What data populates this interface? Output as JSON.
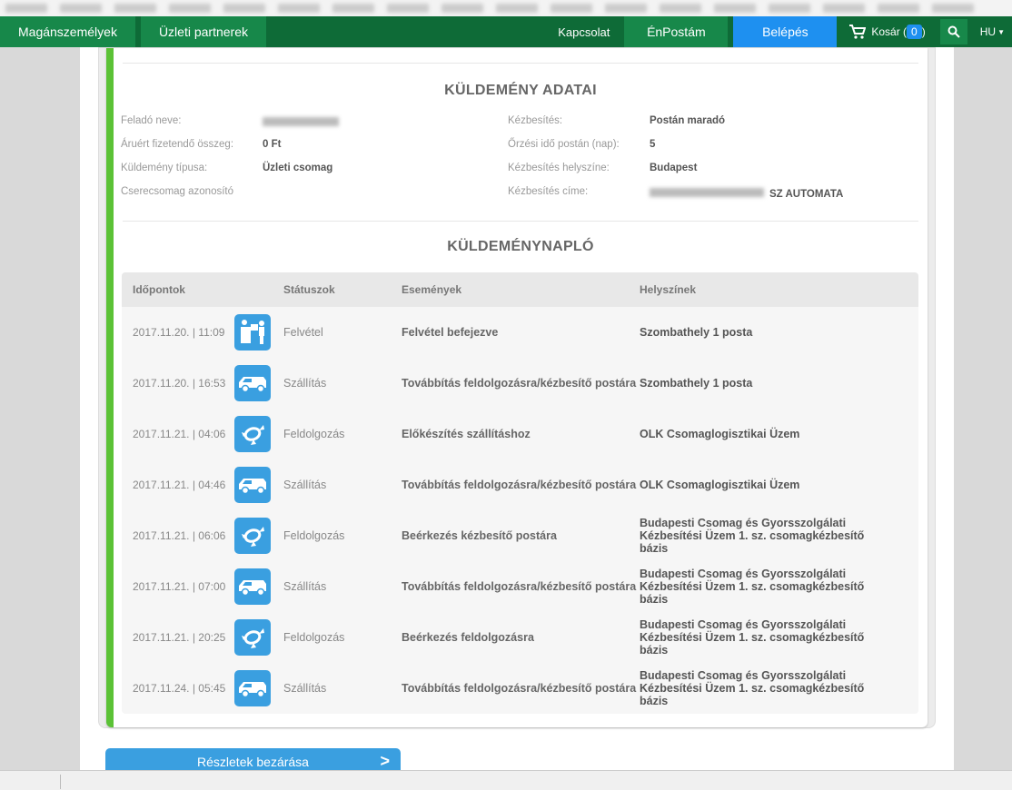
{
  "nav": {
    "tabs": [
      "Magánszemélyek",
      "Üzleti partnerek"
    ],
    "contact": "Kapcsolat",
    "enpostam": "ÉnPostám",
    "login": "Belépés",
    "cart_label": "Kosár (",
    "cart_count": "0",
    "cart_close": ")",
    "lang": "HU"
  },
  "details": {
    "title": "KÜLDEMÉNY ADATAI",
    "left": [
      {
        "k": "Feladó neve:",
        "v": ""
      },
      {
        "k": "Áruért fizetendő összeg:",
        "v": "0 Ft"
      },
      {
        "k": "Küldemény típusa:",
        "v": "Üzleti csomag"
      },
      {
        "k": "Cserecsomag azonosító",
        "v": ""
      }
    ],
    "right": [
      {
        "k": "Kézbesítés:",
        "v": "Postán maradó"
      },
      {
        "k": "Őrzési idő postán (nap):",
        "v": "5"
      },
      {
        "k": "Kézbesítés helyszíne:",
        "v": "Budapest"
      },
      {
        "k": "Kézbesítés címe:",
        "v": "SZ AUTOMATA"
      }
    ]
  },
  "log": {
    "title": "KÜLDEMÉNYNAPLÓ",
    "headers": [
      "Időpontok",
      "Státuszok",
      "Események",
      "Helyszínek"
    ],
    "rows": [
      {
        "time": "2017.11.20. | 11:09",
        "icon": "handover-icon",
        "status": "Felvétel",
        "event": "Felvétel befejezve",
        "place": "Szombathely 1 posta"
      },
      {
        "time": "2017.11.20. | 16:53",
        "icon": "van-icon",
        "status": "Szállítás",
        "event": "Továbbítás feldolgozásra/kézbesítő postára",
        "place": "Szombathely 1 posta"
      },
      {
        "time": "2017.11.21. | 04:06",
        "icon": "processing-icon",
        "status": "Feldolgozás",
        "event": "Előkészítés szállításhoz",
        "place": "OLK Csomaglogisztikai Üzem"
      },
      {
        "time": "2017.11.21. | 04:46",
        "icon": "van-icon",
        "status": "Szállítás",
        "event": "Továbbítás feldolgozásra/kézbesítő postára",
        "place": "OLK Csomaglogisztikai Üzem"
      },
      {
        "time": "2017.11.21. | 06:06",
        "icon": "processing-icon",
        "status": "Feldolgozás",
        "event": "Beérkezés kézbesítő postára",
        "place": "Budapesti Csomag és Gyorsszolgálati Kézbesítési Üzem 1. sz. csomagkézbesítő bázis"
      },
      {
        "time": "2017.11.21. | 07:00",
        "icon": "van-icon",
        "status": "Szállítás",
        "event": "Továbbítás feldolgozásra/kézbesítő postára",
        "place": "Budapesti Csomag és Gyorsszolgálati Kézbesítési Üzem 1. sz. csomagkézbesítő bázis"
      },
      {
        "time": "2017.11.21. | 20:25",
        "icon": "processing-icon",
        "status": "Feldolgozás",
        "event": "Beérkezés feldolgozásra",
        "place": "Budapesti Csomag és Gyorsszolgálati Kézbesítési Üzem 1. sz. csomagkézbesítő bázis"
      },
      {
        "time": "2017.11.24. | 05:45",
        "icon": "van-icon",
        "status": "Szállítás",
        "event": "Továbbítás feldolgozásra/kézbesítő postára",
        "place": "Budapesti Csomag és Gyorsszolgálati Kézbesítési Üzem 1. sz. csomagkézbesítő bázis"
      }
    ]
  },
  "close_button": "Részletek bezárása",
  "colors": {
    "nav": "#0e6b37",
    "accent_green": "#5bc236",
    "blue": "#3a9fe0",
    "login_blue": "#1e90f0"
  }
}
